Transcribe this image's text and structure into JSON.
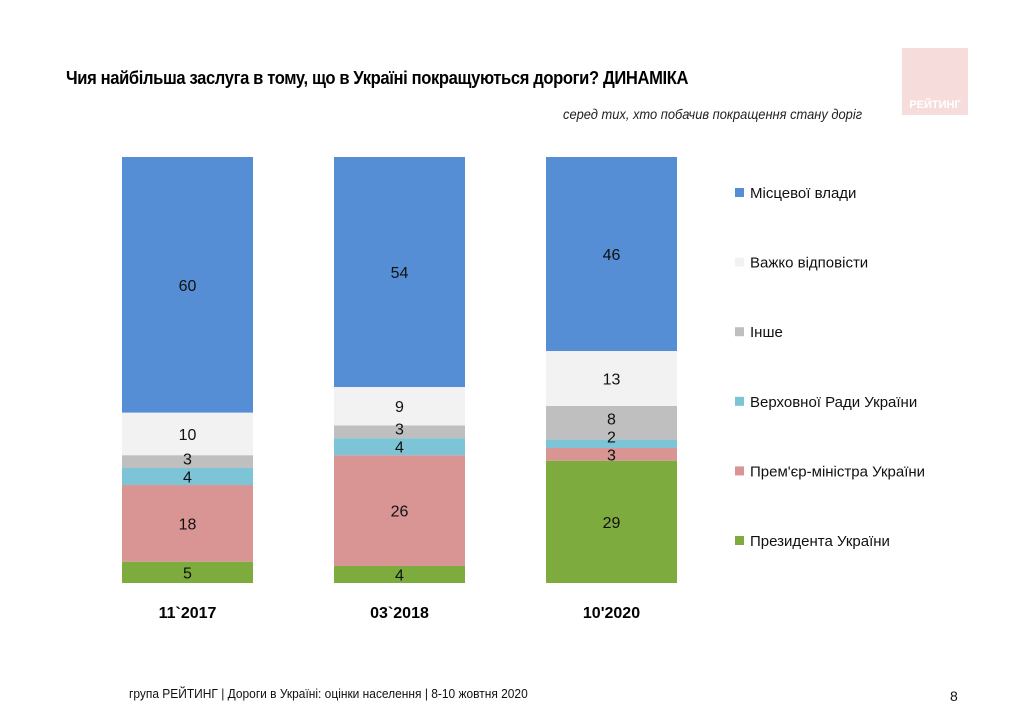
{
  "title": "Чия найбільша заслуга в тому, що в Україні покращуються дороги? ДИНАМІКА",
  "subtitle": "серед тих, хто побачив покращення стану доріг",
  "logo_text": "РЕЙТИНГ",
  "footer": "група РЕЙТИНГ | Дороги в Україні: оцінки населення | 8-10 жовтня 2020",
  "page_number": "8",
  "chart_data": {
    "type": "bar",
    "stacked": true,
    "categories": [
      "11`2017",
      "03`2018",
      "10'2020"
    ],
    "series": [
      {
        "name": "Президента України",
        "color": "#7dab3d",
        "values": [
          5,
          4,
          29
        ]
      },
      {
        "name": "Прем'єр-міністра України",
        "color": "#d99594",
        "values": [
          18,
          26,
          3
        ]
      },
      {
        "name": "Верховної Ради України",
        "color": "#7cc4d6",
        "values": [
          4,
          4,
          2
        ]
      },
      {
        "name": "Інше",
        "color": "#bfbfbf",
        "values": [
          3,
          3,
          8
        ]
      },
      {
        "name": "Важко відповісти",
        "color": "#f2f2f2",
        "values": [
          10,
          9,
          13
        ]
      },
      {
        "name": "Місцевої влади",
        "color": "#558ed5",
        "values": [
          60,
          54,
          46
        ]
      }
    ],
    "legend_order": [
      "Місцевої влади",
      "Важко відповісти",
      "Інше",
      "Верховної Ради України",
      "Прем'єр-міністра України",
      "Президента України"
    ],
    "legend_placement": "right",
    "grid": false,
    "data_labels": true
  }
}
